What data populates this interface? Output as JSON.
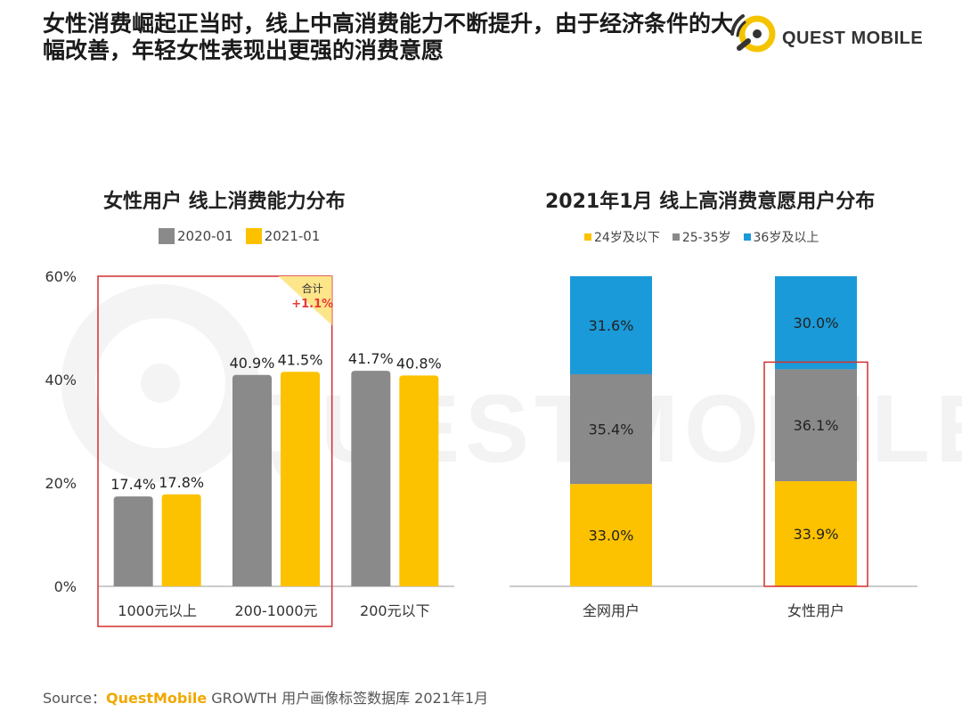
{
  "headline": "女性消费崛起正当时，线上中高消费能力不断提升，由于经济条件的大幅改善，年轻女性表现出更强的消费意愿",
  "logo_text": "QUEST MOBILE",
  "watermark_text": "QUESTMOBILE",
  "source": {
    "label": "Source：",
    "brand": "QuestMobile",
    "rest": " GROWTH 用户画像标签数据库 2021年1月"
  },
  "colors": {
    "gray": "#8a8a8a",
    "yellow": "#fcc200",
    "blue": "#1a9ad9",
    "highlight_box": "#d32f2f",
    "annotation_text": "#e53935",
    "annotation_fill": "#fde58a"
  },
  "chart_data": [
    {
      "type": "bar",
      "title": "女性用户 线上消费能力分布",
      "categories": [
        "1000元以上",
        "200-1000元",
        "200元以下"
      ],
      "series": [
        {
          "name": "2020-01",
          "values": [
            17.4,
            40.9,
            41.7
          ],
          "labels": [
            "17.4%",
            "40.9%",
            "41.7%"
          ]
        },
        {
          "name": "2021-01",
          "values": [
            17.8,
            41.5,
            40.8
          ],
          "labels": [
            "17.8%",
            "41.5%",
            "40.8%"
          ]
        }
      ],
      "ylim": [
        0,
        60
      ],
      "yticks": [
        "0%",
        "20%",
        "40%",
        "60%"
      ],
      "ytick_values": [
        0,
        20,
        40,
        60
      ],
      "legend_position": "top",
      "annotation": {
        "label": "合计",
        "value": "+1.1%"
      },
      "highlight_categories": [
        "1000元以上",
        "200-1000元"
      ]
    },
    {
      "type": "bar",
      "stacked": true,
      "title": "2021年1月 线上高消费意愿用户分布",
      "categories": [
        "全网用户",
        "女性用户"
      ],
      "series": [
        {
          "name": "24岁及以下",
          "values": [
            33.0,
            33.9
          ],
          "labels": [
            "33.0%",
            "33.9%"
          ]
        },
        {
          "name": "25-35岁",
          "values": [
            35.4,
            36.1
          ],
          "labels": [
            "35.4%",
            "36.1%"
          ]
        },
        {
          "name": "36岁及以上",
          "values": [
            31.6,
            30.0
          ],
          "labels": [
            "31.6%",
            "30.0%"
          ]
        }
      ],
      "ylim": [
        0,
        100
      ],
      "legend_position": "top",
      "highlight": {
        "category": "女性用户",
        "series": [
          "24岁及以下",
          "25-35岁"
        ]
      }
    }
  ]
}
